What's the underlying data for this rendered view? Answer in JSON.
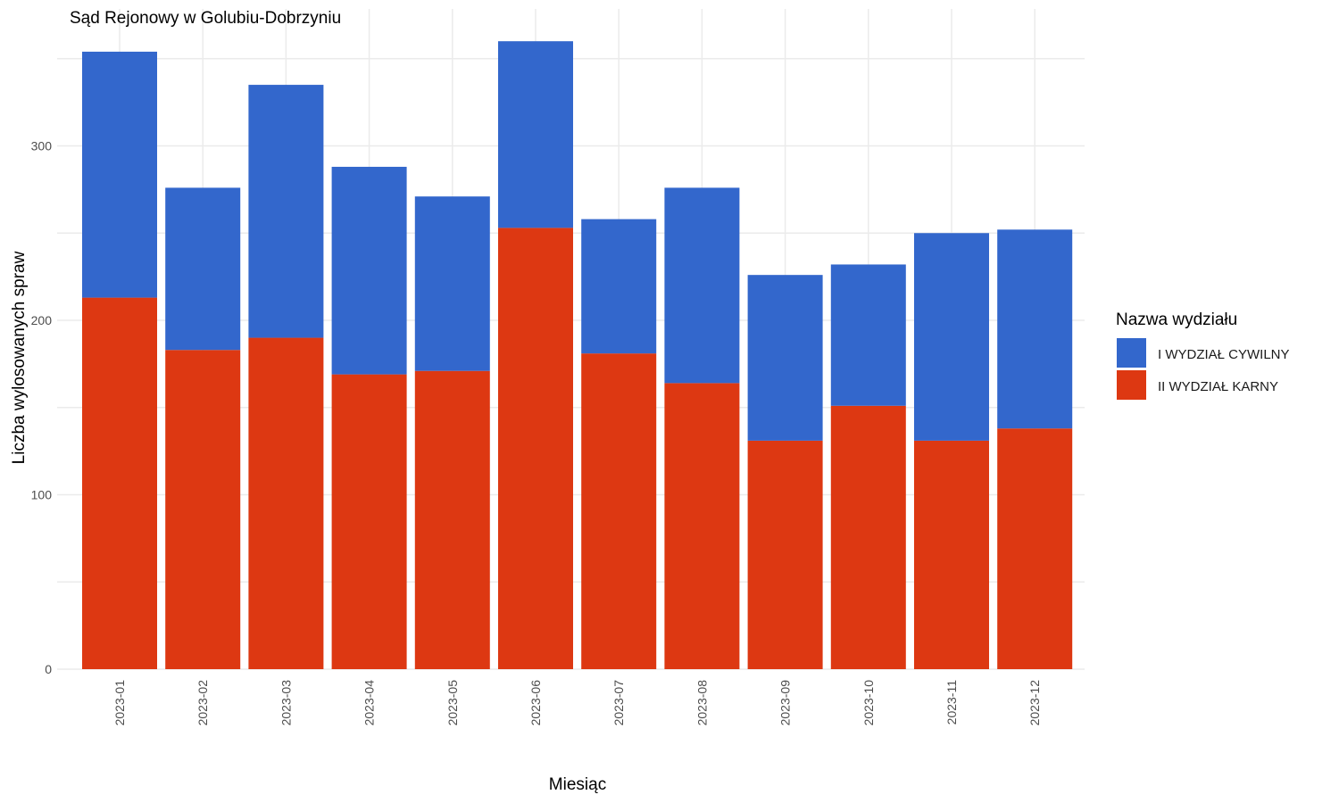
{
  "chart_data": {
    "type": "bar",
    "stacked": true,
    "title": "Sąd Rejonowy w Golubiu-Dobrzyniu",
    "xlabel": "Miesiąc",
    "ylabel": "Liczba wylosowanych spraw",
    "ylim": [
      0,
      378
    ],
    "yticks": [
      0,
      100,
      200,
      300
    ],
    "grid": true,
    "categories": [
      "2023-01",
      "2023-02",
      "2023-03",
      "2023-04",
      "2023-05",
      "2023-06",
      "2023-07",
      "2023-08",
      "2023-09",
      "2023-10",
      "2023-11",
      "2023-12"
    ],
    "series": [
      {
        "name": "II WYDZIAŁ KARNY",
        "color": "#dd3812",
        "values": [
          213,
          183,
          190,
          169,
          171,
          253,
          181,
          164,
          131,
          151,
          131,
          138
        ]
      },
      {
        "name": "I WYDZIAŁ CYWILNY",
        "color": "#3367cc",
        "values": [
          141,
          93,
          145,
          119,
          100,
          107,
          77,
          112,
          95,
          81,
          119,
          114
        ]
      }
    ],
    "legend": {
      "title": "Nazwa wydziału",
      "placement": "right",
      "items": [
        "I WYDZIAŁ CYWILNY",
        "II WYDZIAŁ KARNY"
      ]
    }
  }
}
